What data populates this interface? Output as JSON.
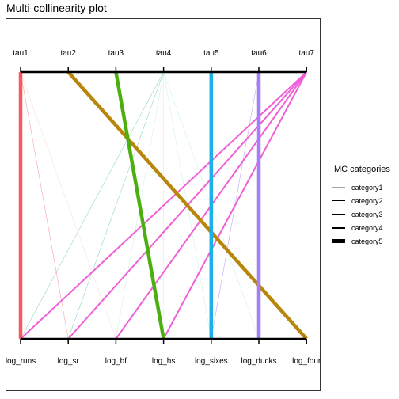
{
  "chart_data": {
    "type": "parallel-coordinates",
    "title": "Multi-collinearity plot",
    "top_axis_labels": [
      "tau1",
      "tau2",
      "tau3",
      "tau4",
      "tau5",
      "tau6",
      "tau7"
    ],
    "bottom_axis_labels": [
      "log_runs",
      "log_sr",
      "log_bf",
      "log_hs",
      "log_sixes",
      "log_ducks",
      "log_four"
    ],
    "legend": {
      "title": "MC categories",
      "position": "right",
      "entries": [
        {
          "label": "category1",
          "width": 0.3
        },
        {
          "label": "category2",
          "width": 0.6
        },
        {
          "label": "category3",
          "width": 1.0
        },
        {
          "label": "category4",
          "width": 2.0
        },
        {
          "label": "category5",
          "width": 4.5
        }
      ]
    },
    "links": [
      {
        "from": "tau1",
        "to": "log_runs",
        "category": "category5",
        "color": "#f8585e"
      },
      {
        "from": "tau1",
        "to": "log_sr",
        "category": "category2",
        "color": "#f8a3a0"
      },
      {
        "from": "tau1",
        "to": "log_bf",
        "category": "category1",
        "color": "#f8c0bc"
      },
      {
        "from": "tau2",
        "to": "log_four",
        "category": "category5",
        "color": "#b8860b"
      },
      {
        "from": "tau3",
        "to": "log_hs",
        "category": "category5",
        "color": "#4caf10"
      },
      {
        "from": "tau4",
        "to": "log_runs",
        "category": "category2",
        "color": "#8fd8c0"
      },
      {
        "from": "tau4",
        "to": "log_sr",
        "category": "category2",
        "color": "#8fd8c0"
      },
      {
        "from": "tau4",
        "to": "log_bf",
        "category": "category1",
        "color": "#a8e4d2"
      },
      {
        "from": "tau4",
        "to": "log_hs",
        "category": "category1",
        "color": "#a8e4d2"
      },
      {
        "from": "tau4",
        "to": "log_sixes",
        "category": "category1",
        "color": "#a8e4d2"
      },
      {
        "from": "tau4",
        "to": "log_ducks",
        "category": "category1",
        "color": "#a8e4d2"
      },
      {
        "from": "tau5",
        "to": "log_sixes",
        "category": "category5",
        "color": "#1ab0e8"
      },
      {
        "from": "tau6",
        "to": "log_sixes",
        "category": "category2",
        "color": "#c0a8f0"
      },
      {
        "from": "tau6",
        "to": "log_ducks",
        "category": "category5",
        "color": "#a37ef5"
      },
      {
        "from": "tau7",
        "to": "log_runs",
        "category": "category4",
        "color": "#ef5fd8"
      },
      {
        "from": "tau7",
        "to": "log_sr",
        "category": "category4",
        "color": "#ef5fd8"
      },
      {
        "from": "tau7",
        "to": "log_bf",
        "category": "category4",
        "color": "#ef5fd8"
      },
      {
        "from": "tau7",
        "to": "log_hs",
        "category": "category4",
        "color": "#ef5fd8"
      }
    ]
  }
}
